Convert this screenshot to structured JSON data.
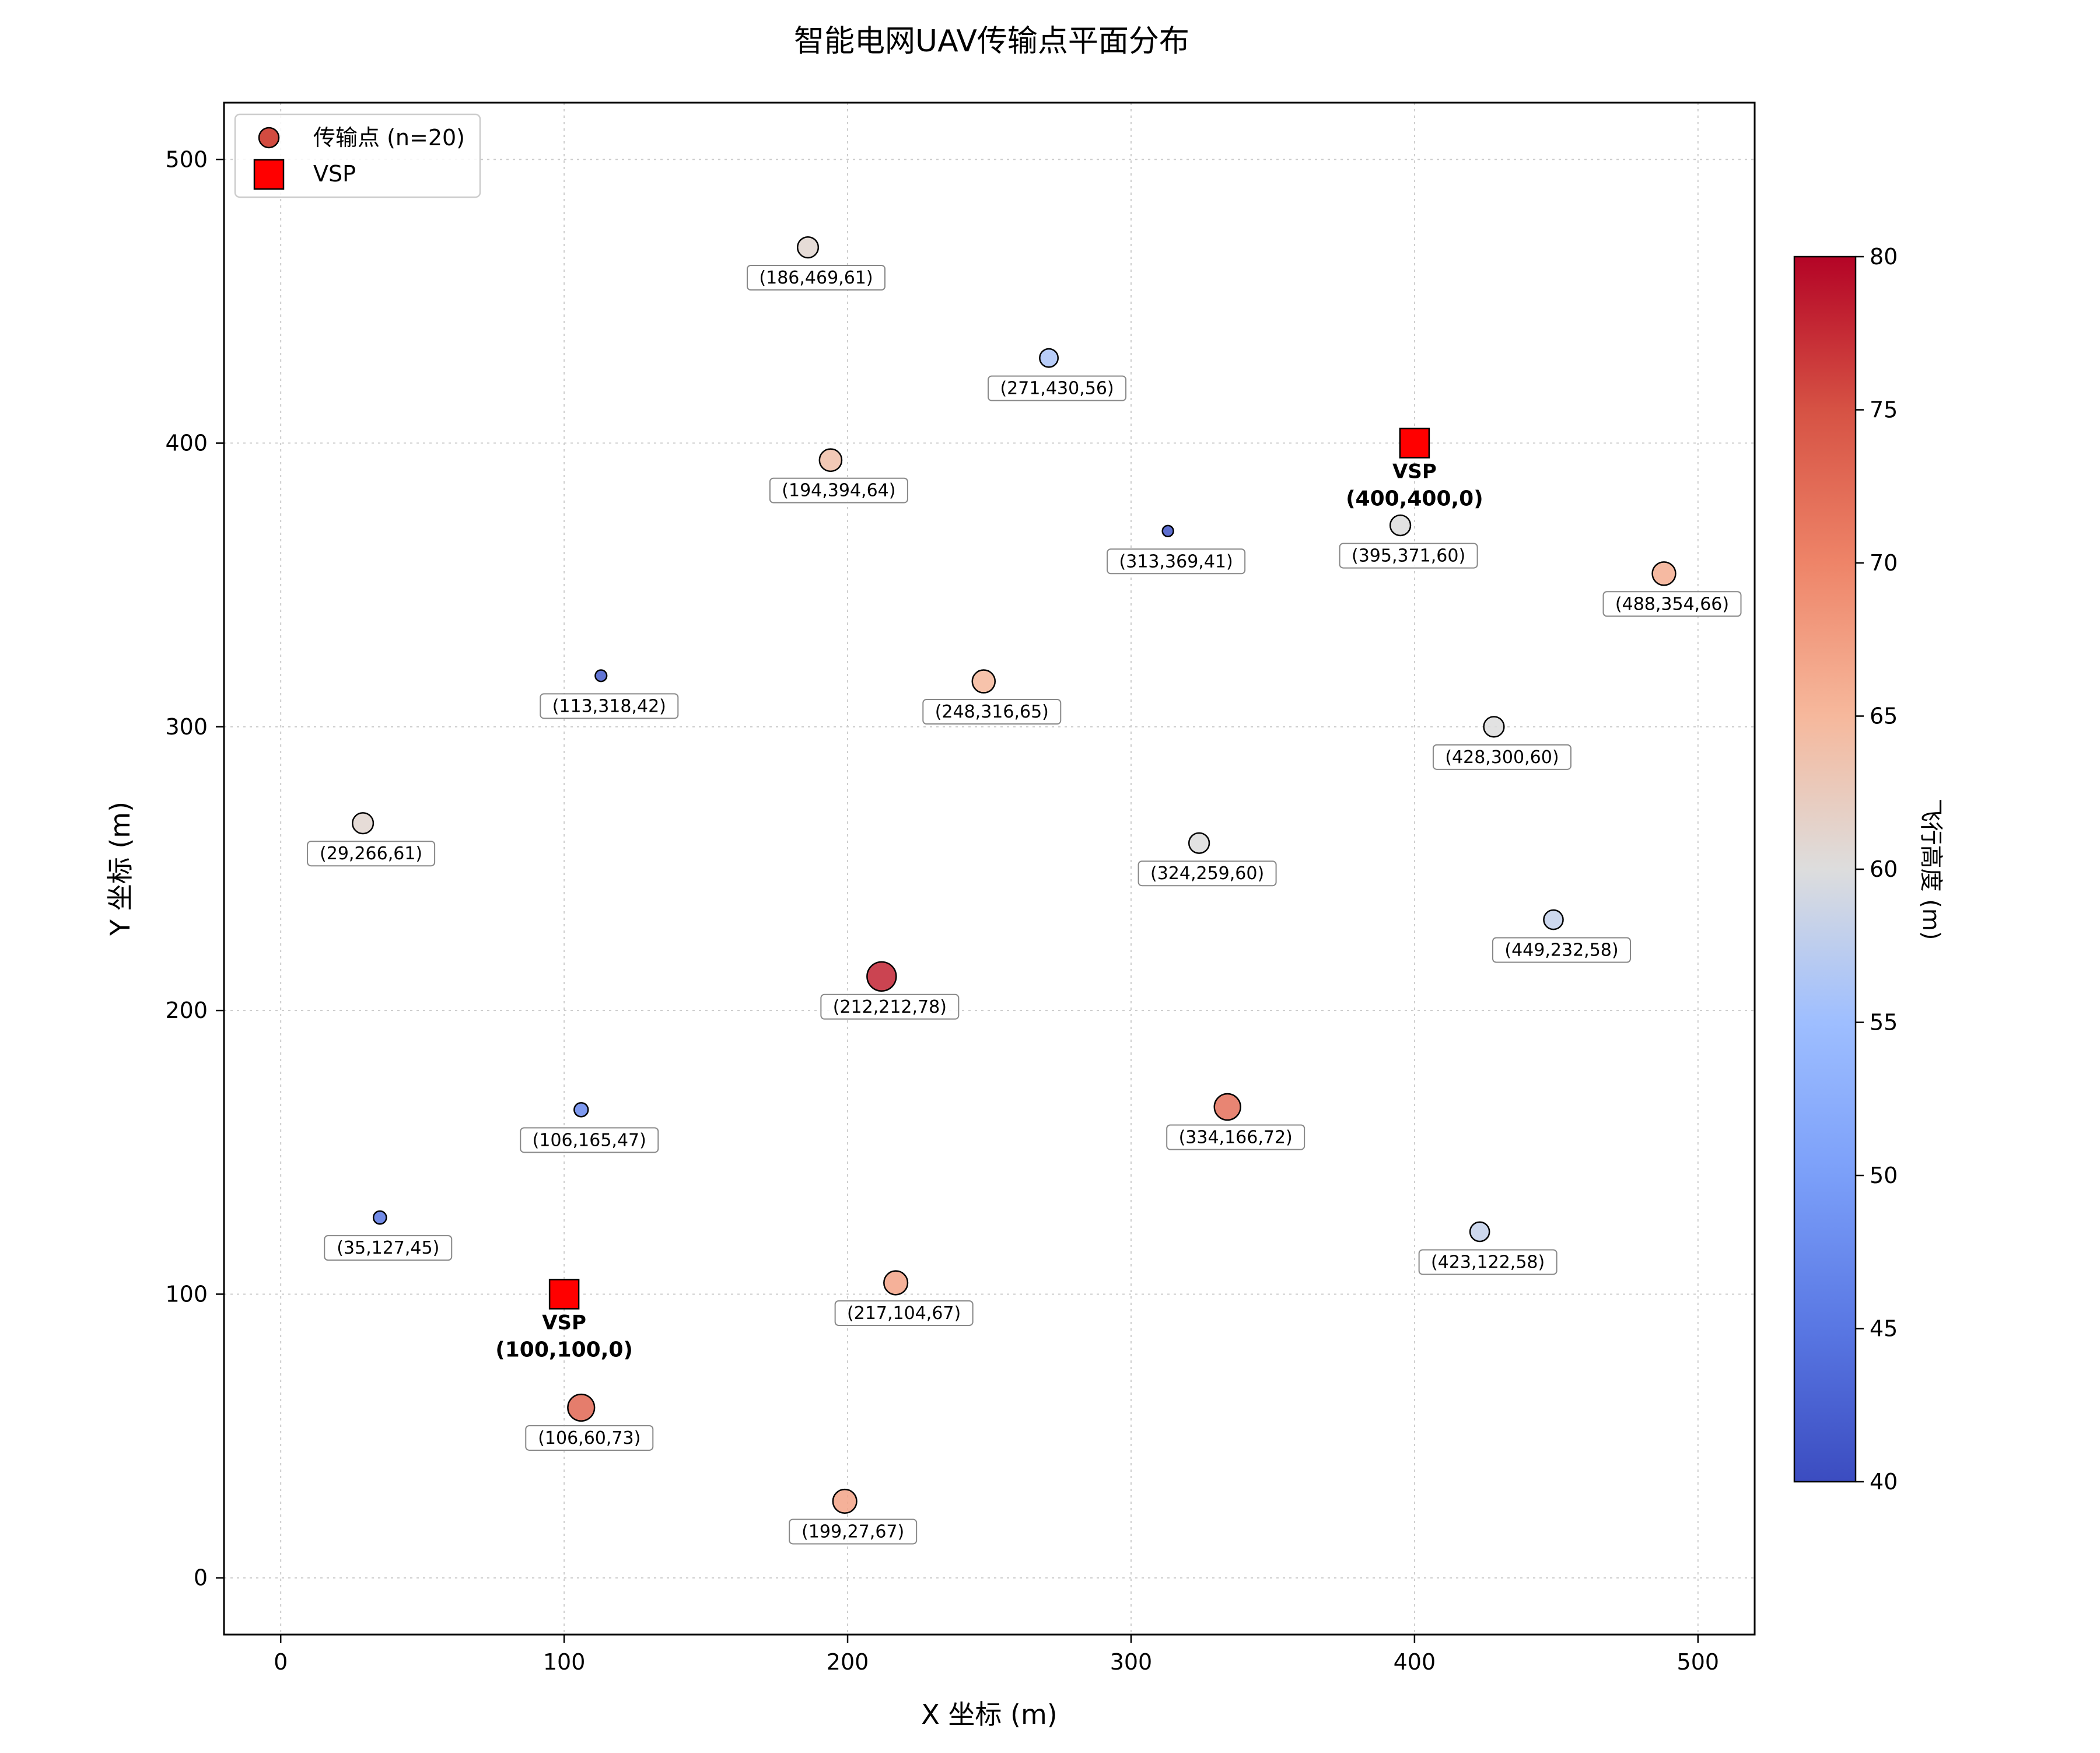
{
  "chart_data": {
    "type": "scatter",
    "title": "智能电网UAV传输点平面分布",
    "xlabel": "X 坐标 (m)",
    "ylabel": "Y 坐标 (m)",
    "xlim": [
      -20,
      520
    ],
    "ylim": [
      -20,
      520
    ],
    "xticks": [
      0,
      100,
      200,
      300,
      400,
      500
    ],
    "yticks": [
      0,
      100,
      200,
      300,
      400,
      500
    ],
    "grid": true,
    "legend_position": "top-left",
    "colormap": "coolwarm",
    "colorbar": {
      "label": "飞行高度 (m)",
      "min": 40,
      "max": 80,
      "ticks": [
        40,
        45,
        50,
        55,
        60,
        65,
        70,
        75,
        80
      ]
    },
    "series": [
      {
        "name": "传输点 (n=20)",
        "marker": "circle",
        "points": [
          {
            "x": 186,
            "y": 469,
            "z": 61,
            "label": "(186,469,61)"
          },
          {
            "x": 271,
            "y": 430,
            "z": 56,
            "label": "(271,430,56)"
          },
          {
            "x": 194,
            "y": 394,
            "z": 64,
            "label": "(194,394,64)"
          },
          {
            "x": 313,
            "y": 369,
            "z": 41,
            "label": "(313,369,41)"
          },
          {
            "x": 395,
            "y": 371,
            "z": 60,
            "label": "(395,371,60)"
          },
          {
            "x": 488,
            "y": 354,
            "z": 66,
            "label": "(488,354,66)"
          },
          {
            "x": 113,
            "y": 318,
            "z": 42,
            "label": "(113,318,42)"
          },
          {
            "x": 248,
            "y": 316,
            "z": 65,
            "label": "(248,316,65)"
          },
          {
            "x": 428,
            "y": 300,
            "z": 60,
            "label": "(428,300,60)"
          },
          {
            "x": 29,
            "y": 266,
            "z": 61,
            "label": "(29,266,61)"
          },
          {
            "x": 324,
            "y": 259,
            "z": 60,
            "label": "(324,259,60)"
          },
          {
            "x": 449,
            "y": 232,
            "z": 58,
            "label": "(449,232,58)"
          },
          {
            "x": 212,
            "y": 212,
            "z": 78,
            "label": "(212,212,78)"
          },
          {
            "x": 106,
            "y": 165,
            "z": 47,
            "label": "(106,165,47)"
          },
          {
            "x": 334,
            "y": 166,
            "z": 72,
            "label": "(334,166,72)"
          },
          {
            "x": 35,
            "y": 127,
            "z": 45,
            "label": "(35,127,45)"
          },
          {
            "x": 423,
            "y": 122,
            "z": 58,
            "label": "(423,122,58)"
          },
          {
            "x": 217,
            "y": 104,
            "z": 67,
            "label": "(217,104,67)"
          },
          {
            "x": 106,
            "y": 60,
            "z": 73,
            "label": "(106,60,73)"
          },
          {
            "x": 199,
            "y": 27,
            "z": 67,
            "label": "(199,27,67)"
          }
        ]
      },
      {
        "name": "VSP",
        "marker": "square",
        "color": "#ff0000",
        "points": [
          {
            "x": 400,
            "y": 400,
            "z": 0,
            "name": "VSP",
            "label": "(400,400,0)"
          },
          {
            "x": 100,
            "y": 100,
            "z": 0,
            "name": "VSP",
            "label": "(100,100,0)"
          }
        ]
      }
    ]
  }
}
